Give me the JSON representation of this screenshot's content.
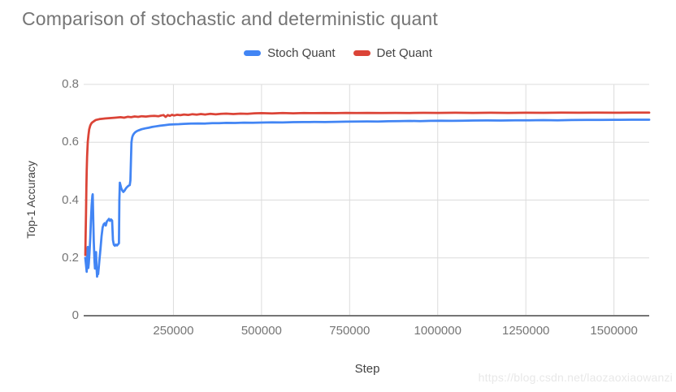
{
  "page": {
    "watermark": "https://blog.csdn.net/laozaoxiaowanzi"
  },
  "legend": {
    "items": [
      {
        "label": "Stoch Quant",
        "color": "#4285f4"
      },
      {
        "label": "Det Quant",
        "color": "#db4437"
      }
    ]
  },
  "style": {
    "background": "#ffffff",
    "title_color": "#757575",
    "legend_text_color": "#424242",
    "axis_title_color": "#424242",
    "tick_label_color": "#757575",
    "grid_color": "#dcdcdc",
    "axis_line_color": "#757575",
    "watermark_color": "#e8e8e8"
  },
  "chart_data": {
    "type": "line",
    "title": "Comparison of stochastic and deterministic quant",
    "xlabel": "Step",
    "ylabel": "Top-1 Accuracy",
    "xlim": [
      0,
      1600000
    ],
    "ylim": [
      0,
      0.8
    ],
    "grid": true,
    "legend_position": "top-center",
    "x_ticks": [
      250000,
      500000,
      750000,
      1000000,
      1250000,
      1500000
    ],
    "x_tick_labels": [
      "250000",
      "500000",
      "750000",
      "1000000",
      "1250000",
      "1500000"
    ],
    "y_ticks": [
      0,
      0.2,
      0.4,
      0.6,
      0.8
    ],
    "y_tick_labels": [
      "0",
      "0.2",
      "0.4",
      "0.6",
      "0.8"
    ],
    "series": [
      {
        "name": "Stoch Quant",
        "color": "#4285f4",
        "points": [
          [
            0,
            0.2
          ],
          [
            2000,
            0.175
          ],
          [
            4000,
            0.152
          ],
          [
            5500,
            0.21
          ],
          [
            7000,
            0.238
          ],
          [
            8500,
            0.165
          ],
          [
            10000,
            0.182
          ],
          [
            12000,
            0.22
          ],
          [
            14000,
            0.268
          ],
          [
            16000,
            0.33
          ],
          [
            18000,
            0.382
          ],
          [
            20000,
            0.415
          ],
          [
            21000,
            0.42
          ],
          [
            22500,
            0.33
          ],
          [
            24000,
            0.258
          ],
          [
            26000,
            0.19
          ],
          [
            27500,
            0.163
          ],
          [
            29000,
            0.21
          ],
          [
            30500,
            0.22
          ],
          [
            32000,
            0.163
          ],
          [
            33500,
            0.135
          ],
          [
            35000,
            0.158
          ],
          [
            36500,
            0.144
          ],
          [
            38000,
            0.165
          ],
          [
            40000,
            0.19
          ],
          [
            43000,
            0.232
          ],
          [
            46000,
            0.275
          ],
          [
            49000,
            0.305
          ],
          [
            52000,
            0.316
          ],
          [
            55000,
            0.32
          ],
          [
            58000,
            0.312
          ],
          [
            61000,
            0.326
          ],
          [
            64000,
            0.33
          ],
          [
            67000,
            0.335
          ],
          [
            70000,
            0.328
          ],
          [
            73000,
            0.333
          ],
          [
            76000,
            0.329
          ],
          [
            78500,
            0.262
          ],
          [
            81000,
            0.246
          ],
          [
            84000,
            0.242
          ],
          [
            87000,
            0.246
          ],
          [
            90000,
            0.243
          ],
          [
            93000,
            0.247
          ],
          [
            95500,
            0.251
          ],
          [
            96500,
            0.4
          ],
          [
            98000,
            0.46
          ],
          [
            100000,
            0.45
          ],
          [
            102000,
            0.441
          ],
          [
            105000,
            0.433
          ],
          [
            108000,
            0.428
          ],
          [
            111000,
            0.432
          ],
          [
            114000,
            0.438
          ],
          [
            117000,
            0.443
          ],
          [
            120000,
            0.447
          ],
          [
            123000,
            0.45
          ],
          [
            126000,
            0.452
          ],
          [
            128000,
            0.468
          ],
          [
            129500,
            0.54
          ],
          [
            131000,
            0.6
          ],
          [
            133000,
            0.617
          ],
          [
            135000,
            0.624
          ],
          [
            138000,
            0.63
          ],
          [
            142000,
            0.635
          ],
          [
            147000,
            0.639
          ],
          [
            153000,
            0.642
          ],
          [
            160000,
            0.645
          ],
          [
            170000,
            0.648
          ],
          [
            180000,
            0.65
          ],
          [
            190000,
            0.653
          ],
          [
            200000,
            0.655
          ],
          [
            212000,
            0.657
          ],
          [
            225000,
            0.659
          ],
          [
            238000,
            0.661
          ],
          [
            250000,
            0.662
          ],
          [
            265000,
            0.6625
          ],
          [
            280000,
            0.6635
          ],
          [
            300000,
            0.6645
          ],
          [
            320000,
            0.665
          ],
          [
            340000,
            0.6648
          ],
          [
            360000,
            0.666
          ],
          [
            380000,
            0.6658
          ],
          [
            400000,
            0.667
          ],
          [
            425000,
            0.6668
          ],
          [
            450000,
            0.6678
          ],
          [
            475000,
            0.6674
          ],
          [
            500000,
            0.668
          ],
          [
            530000,
            0.6688
          ],
          [
            560000,
            0.6684
          ],
          [
            590000,
            0.6694
          ],
          [
            620000,
            0.6698
          ],
          [
            650000,
            0.67
          ],
          [
            680000,
            0.6698
          ],
          [
            710000,
            0.6706
          ],
          [
            740000,
            0.6712
          ],
          [
            770000,
            0.6716
          ],
          [
            800000,
            0.672
          ],
          [
            830000,
            0.6716
          ],
          [
            860000,
            0.6726
          ],
          [
            890000,
            0.673
          ],
          [
            920000,
            0.6736
          ],
          [
            950000,
            0.6732
          ],
          [
            980000,
            0.674
          ],
          [
            1010000,
            0.6744
          ],
          [
            1040000,
            0.674
          ],
          [
            1070000,
            0.6746
          ],
          [
            1100000,
            0.675
          ],
          [
            1140000,
            0.6754
          ],
          [
            1180000,
            0.675
          ],
          [
            1220000,
            0.6756
          ],
          [
            1260000,
            0.676
          ],
          [
            1300000,
            0.6764
          ],
          [
            1340000,
            0.676
          ],
          [
            1380000,
            0.6768
          ],
          [
            1420000,
            0.677
          ],
          [
            1460000,
            0.6774
          ],
          [
            1500000,
            0.6776
          ],
          [
            1550000,
            0.678
          ],
          [
            1600000,
            0.678
          ]
        ]
      },
      {
        "name": "Det Quant",
        "color": "#db4437",
        "points": [
          [
            0,
            0.21
          ],
          [
            1000,
            0.28
          ],
          [
            2000,
            0.36
          ],
          [
            3000,
            0.44
          ],
          [
            4000,
            0.5
          ],
          [
            5000,
            0.55
          ],
          [
            7000,
            0.6
          ],
          [
            9000,
            0.625
          ],
          [
            11000,
            0.645
          ],
          [
            14000,
            0.658
          ],
          [
            17000,
            0.665
          ],
          [
            20000,
            0.669
          ],
          [
            25000,
            0.673
          ],
          [
            30000,
            0.677
          ],
          [
            40000,
            0.68
          ],
          [
            55000,
            0.682
          ],
          [
            70000,
            0.6835
          ],
          [
            85000,
            0.685
          ],
          [
            100000,
            0.6865
          ],
          [
            110000,
            0.685
          ],
          [
            120000,
            0.688
          ],
          [
            130000,
            0.6865
          ],
          [
            140000,
            0.689
          ],
          [
            150000,
            0.6878
          ],
          [
            160000,
            0.69
          ],
          [
            172000,
            0.6888
          ],
          [
            184000,
            0.6905
          ],
          [
            196000,
            0.6915
          ],
          [
            208000,
            0.69
          ],
          [
            215000,
            0.6925
          ],
          [
            222000,
            0.694
          ],
          [
            228000,
            0.6875
          ],
          [
            234000,
            0.694
          ],
          [
            240000,
            0.691
          ],
          [
            246000,
            0.695
          ],
          [
            252000,
            0.6925
          ],
          [
            260000,
            0.695
          ],
          [
            270000,
            0.6935
          ],
          [
            280000,
            0.696
          ],
          [
            292000,
            0.6945
          ],
          [
            304000,
            0.697
          ],
          [
            316000,
            0.6955
          ],
          [
            328000,
            0.6975
          ],
          [
            340000,
            0.696
          ],
          [
            355000,
            0.698
          ],
          [
            370000,
            0.6965
          ],
          [
            385000,
            0.6985
          ],
          [
            400000,
            0.699
          ],
          [
            420000,
            0.6975
          ],
          [
            440000,
            0.699
          ],
          [
            460000,
            0.6985
          ],
          [
            480000,
            0.7
          ],
          [
            500000,
            0.7005
          ],
          [
            530000,
            0.6995
          ],
          [
            560000,
            0.7008
          ],
          [
            590000,
            0.7
          ],
          [
            620000,
            0.701
          ],
          [
            650000,
            0.7005
          ],
          [
            680000,
            0.7012
          ],
          [
            710000,
            0.7006
          ],
          [
            740000,
            0.7014
          ],
          [
            770000,
            0.7008
          ],
          [
            800000,
            0.7015
          ],
          [
            840000,
            0.701
          ],
          [
            880000,
            0.7016
          ],
          [
            920000,
            0.7012
          ],
          [
            960000,
            0.7018
          ],
          [
            1000000,
            0.7014
          ],
          [
            1050000,
            0.7019
          ],
          [
            1100000,
            0.7015
          ],
          [
            1150000,
            0.702
          ],
          [
            1200000,
            0.7016
          ],
          [
            1250000,
            0.7021
          ],
          [
            1300000,
            0.7018
          ],
          [
            1350000,
            0.7022
          ],
          [
            1400000,
            0.7019
          ],
          [
            1450000,
            0.7023
          ],
          [
            1500000,
            0.702
          ],
          [
            1550000,
            0.7024
          ],
          [
            1600000,
            0.7022
          ]
        ]
      }
    ]
  }
}
